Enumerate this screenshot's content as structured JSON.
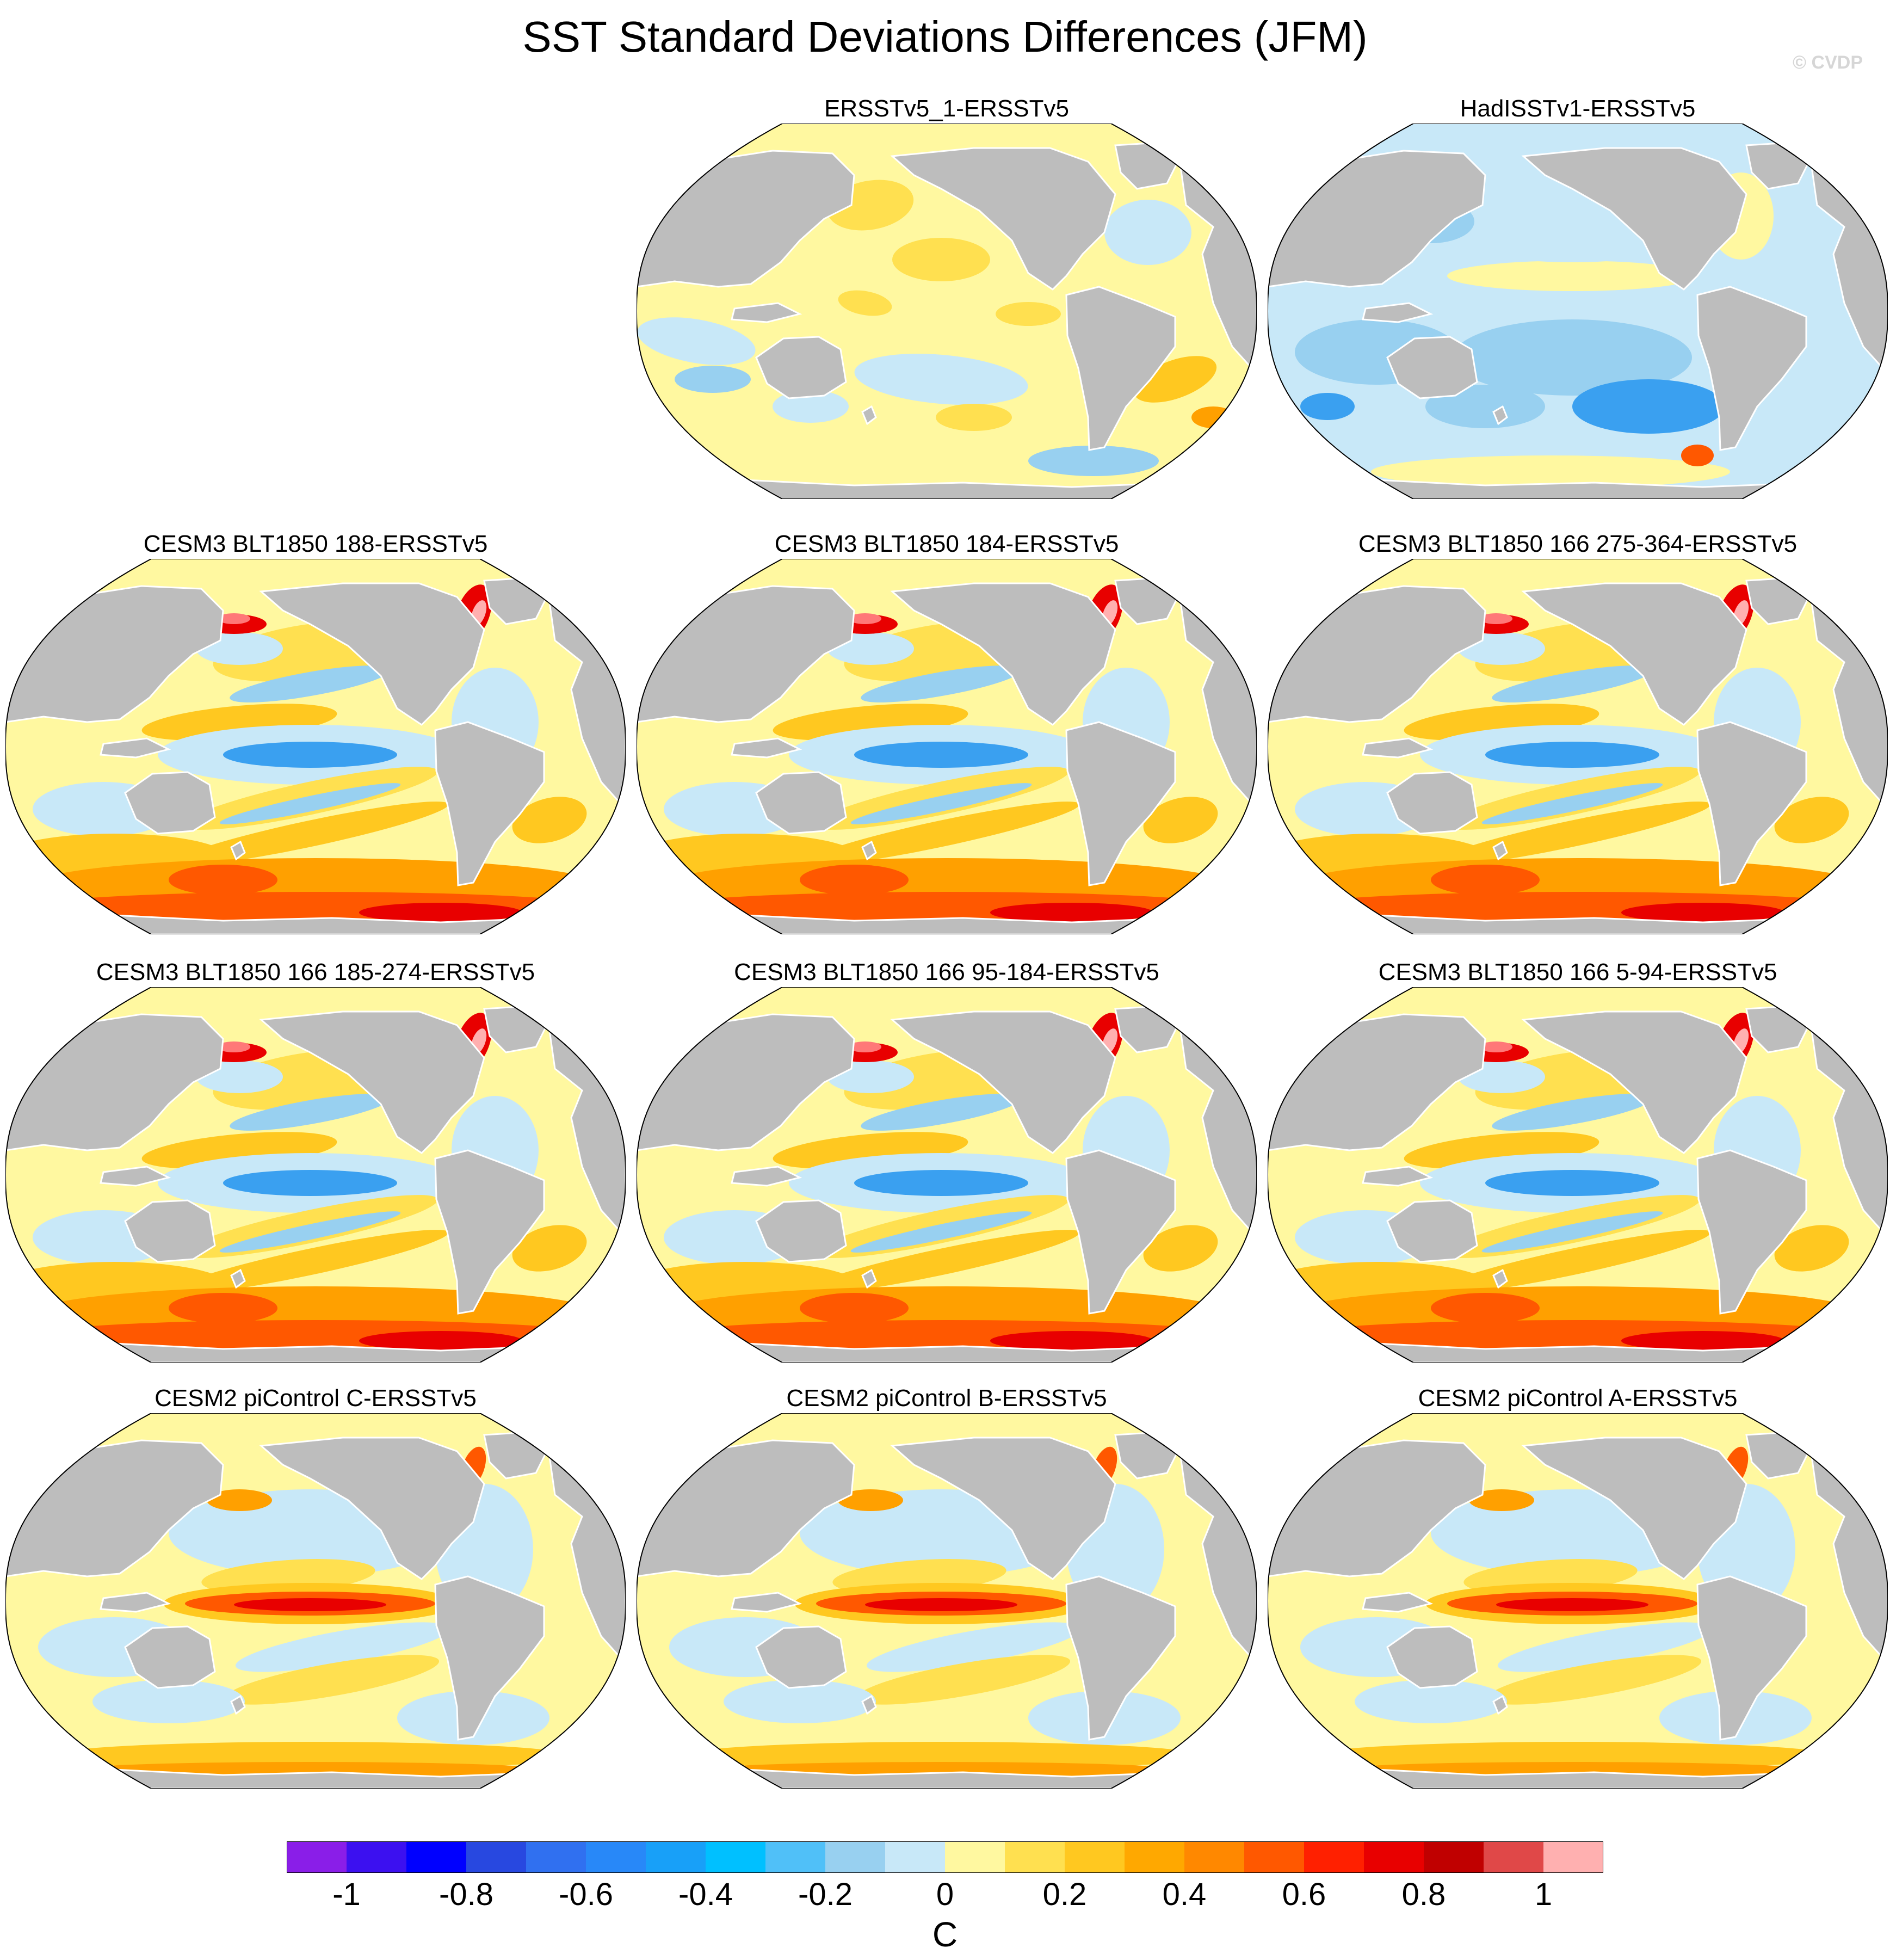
{
  "title": "SST Standard Deviations Differences (JFM)",
  "watermark": "© CVDP",
  "panels": [
    {
      "title": "ERSSTv5_1-ERSSTv5",
      "pattern": "obs-ersst"
    },
    {
      "title": "HadISSTv1-ERSSTv5",
      "pattern": "obs-hadisst"
    },
    {
      "title": "CESM3 BLT1850 188-ERSSTv5",
      "pattern": "cesm3"
    },
    {
      "title": "CESM3 BLT1850 184-ERSSTv5",
      "pattern": "cesm3"
    },
    {
      "title": "CESM3 BLT1850 166 275-364-ERSSTv5",
      "pattern": "cesm3"
    },
    {
      "title": "CESM3 BLT1850 166 185-274-ERSSTv5",
      "pattern": "cesm3"
    },
    {
      "title": "CESM3 BLT1850 166 95-184-ERSSTv5",
      "pattern": "cesm3"
    },
    {
      "title": "CESM3 BLT1850 166 5-94-ERSSTv5",
      "pattern": "cesm3"
    },
    {
      "title": "CESM2 piControl C-ERSSTv5",
      "pattern": "cesm2"
    },
    {
      "title": "CESM2 piControl B-ERSSTv5",
      "pattern": "cesm2"
    },
    {
      "title": "CESM2 piControl A-ERSSTv5",
      "pattern": "cesm2"
    }
  ],
  "colorbar": {
    "unit": "C",
    "tick_labels": [
      "-1",
      "-0.8",
      "-0.6",
      "-0.4",
      "-0.2",
      "0",
      "0.2",
      "0.4",
      "0.6",
      "0.8",
      "1"
    ],
    "colors": [
      "#8a1ee8",
      "#3c10f0",
      "#0000ff",
      "#2848e0",
      "#3070f0",
      "#2888f8",
      "#18a0f8",
      "#00c0ff",
      "#50c0f8",
      "#98d0f0",
      "#c8e8f8",
      "#fff8a0",
      "#ffe050",
      "#ffc820",
      "#ffa800",
      "#ff8800",
      "#ff5800",
      "#ff2000",
      "#e80000",
      "#c00000",
      "#e04848",
      "#ffb0b0"
    ]
  },
  "map_colors": {
    "land": "#bdbdbd",
    "neg1": "#c8e8f8",
    "neg2": "#98d0f0",
    "neg3": "#3aa0f0",
    "pos1": "#fff8a0",
    "pos2": "#ffe050",
    "pos3": "#ffc820",
    "pos4": "#ffa000",
    "pos5": "#ff5800",
    "pos6": "#e80000"
  }
}
